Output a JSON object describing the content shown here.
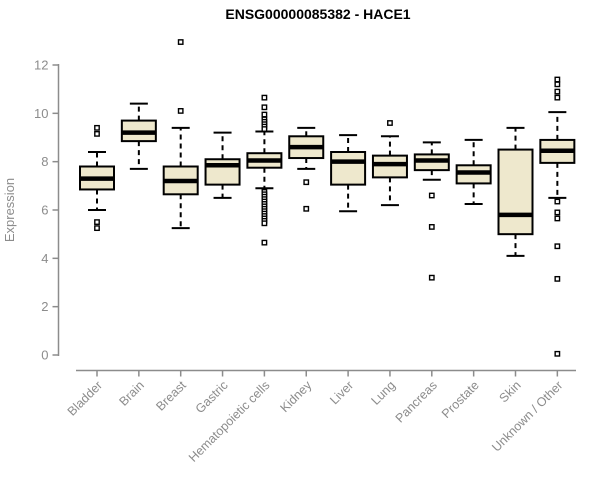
{
  "page": {
    "background": "#ffffff"
  },
  "chart_data": {
    "type": "boxplot",
    "title": "ENSG00000085382 - HACE1",
    "ylabel": "Expression",
    "xlabel": "",
    "ylim": [
      0,
      13
    ],
    "yticks": [
      0,
      2,
      4,
      6,
      8,
      10,
      12
    ],
    "grid": false,
    "legend_position": "none",
    "colors": {
      "box_fill": "#EEE8CD",
      "box_stroke": "#000000",
      "median": "#000000",
      "axis": "#8C8C8C",
      "title": "#000000",
      "background": "#ffffff"
    },
    "boxes": [
      {
        "category": "Bladder",
        "whisker_low": 6.0,
        "q1": 6.85,
        "median": 7.3,
        "q3": 7.8,
        "whisker_high": 8.4,
        "outliers": [
          9.4,
          9.15,
          5.5,
          5.25
        ]
      },
      {
        "category": "Brain",
        "whisker_low": 7.7,
        "q1": 8.85,
        "median": 9.2,
        "q3": 9.7,
        "whisker_high": 10.4,
        "outliers": []
      },
      {
        "category": "Breast",
        "whisker_low": 5.25,
        "q1": 6.65,
        "median": 7.2,
        "q3": 7.8,
        "whisker_high": 9.4,
        "outliers": [
          12.95,
          10.1
        ]
      },
      {
        "category": "Gastric",
        "whisker_low": 6.5,
        "q1": 7.05,
        "median": 7.85,
        "q3": 8.1,
        "whisker_high": 9.2,
        "outliers": []
      },
      {
        "category": "Hematopoietic cells",
        "whisker_low": 6.9,
        "q1": 7.75,
        "median": 8.05,
        "q3": 8.35,
        "whisker_high": 9.25,
        "outliers": [
          10.65,
          10.25,
          9.95,
          9.75,
          9.65,
          9.55,
          9.45,
          9.35,
          6.75,
          6.65,
          6.55,
          6.45,
          6.35,
          6.25,
          6.15,
          6.05,
          5.95,
          5.85,
          5.75,
          5.65,
          5.55,
          5.45,
          4.65
        ]
      },
      {
        "category": "Kidney",
        "whisker_low": 7.7,
        "q1": 8.15,
        "median": 8.6,
        "q3": 9.05,
        "whisker_high": 9.4,
        "outliers": [
          7.15,
          6.05
        ]
      },
      {
        "category": "Liver",
        "whisker_low": 5.95,
        "q1": 7.05,
        "median": 8.0,
        "q3": 8.4,
        "whisker_high": 9.1,
        "outliers": []
      },
      {
        "category": "Lung",
        "whisker_low": 6.2,
        "q1": 7.35,
        "median": 7.9,
        "q3": 8.25,
        "whisker_high": 9.05,
        "outliers": [
          9.6
        ]
      },
      {
        "category": "Pancreas",
        "whisker_low": 7.25,
        "q1": 7.65,
        "median": 8.05,
        "q3": 8.3,
        "whisker_high": 8.8,
        "outliers": [
          6.6,
          5.3,
          3.2
        ]
      },
      {
        "category": "Prostate",
        "whisker_low": 6.25,
        "q1": 7.1,
        "median": 7.55,
        "q3": 7.85,
        "whisker_high": 8.9,
        "outliers": []
      },
      {
        "category": "Skin",
        "whisker_low": 4.1,
        "q1": 5.0,
        "median": 5.8,
        "q3": 8.5,
        "whisker_high": 9.4,
        "outliers": []
      },
      {
        "category": "Unknown / Other",
        "whisker_low": 6.5,
        "q1": 7.95,
        "median": 8.45,
        "q3": 8.9,
        "whisker_high": 10.05,
        "outliers": [
          11.4,
          11.2,
          10.9,
          10.65,
          6.35,
          5.9,
          5.65,
          4.5,
          3.15,
          0.05
        ]
      }
    ]
  }
}
